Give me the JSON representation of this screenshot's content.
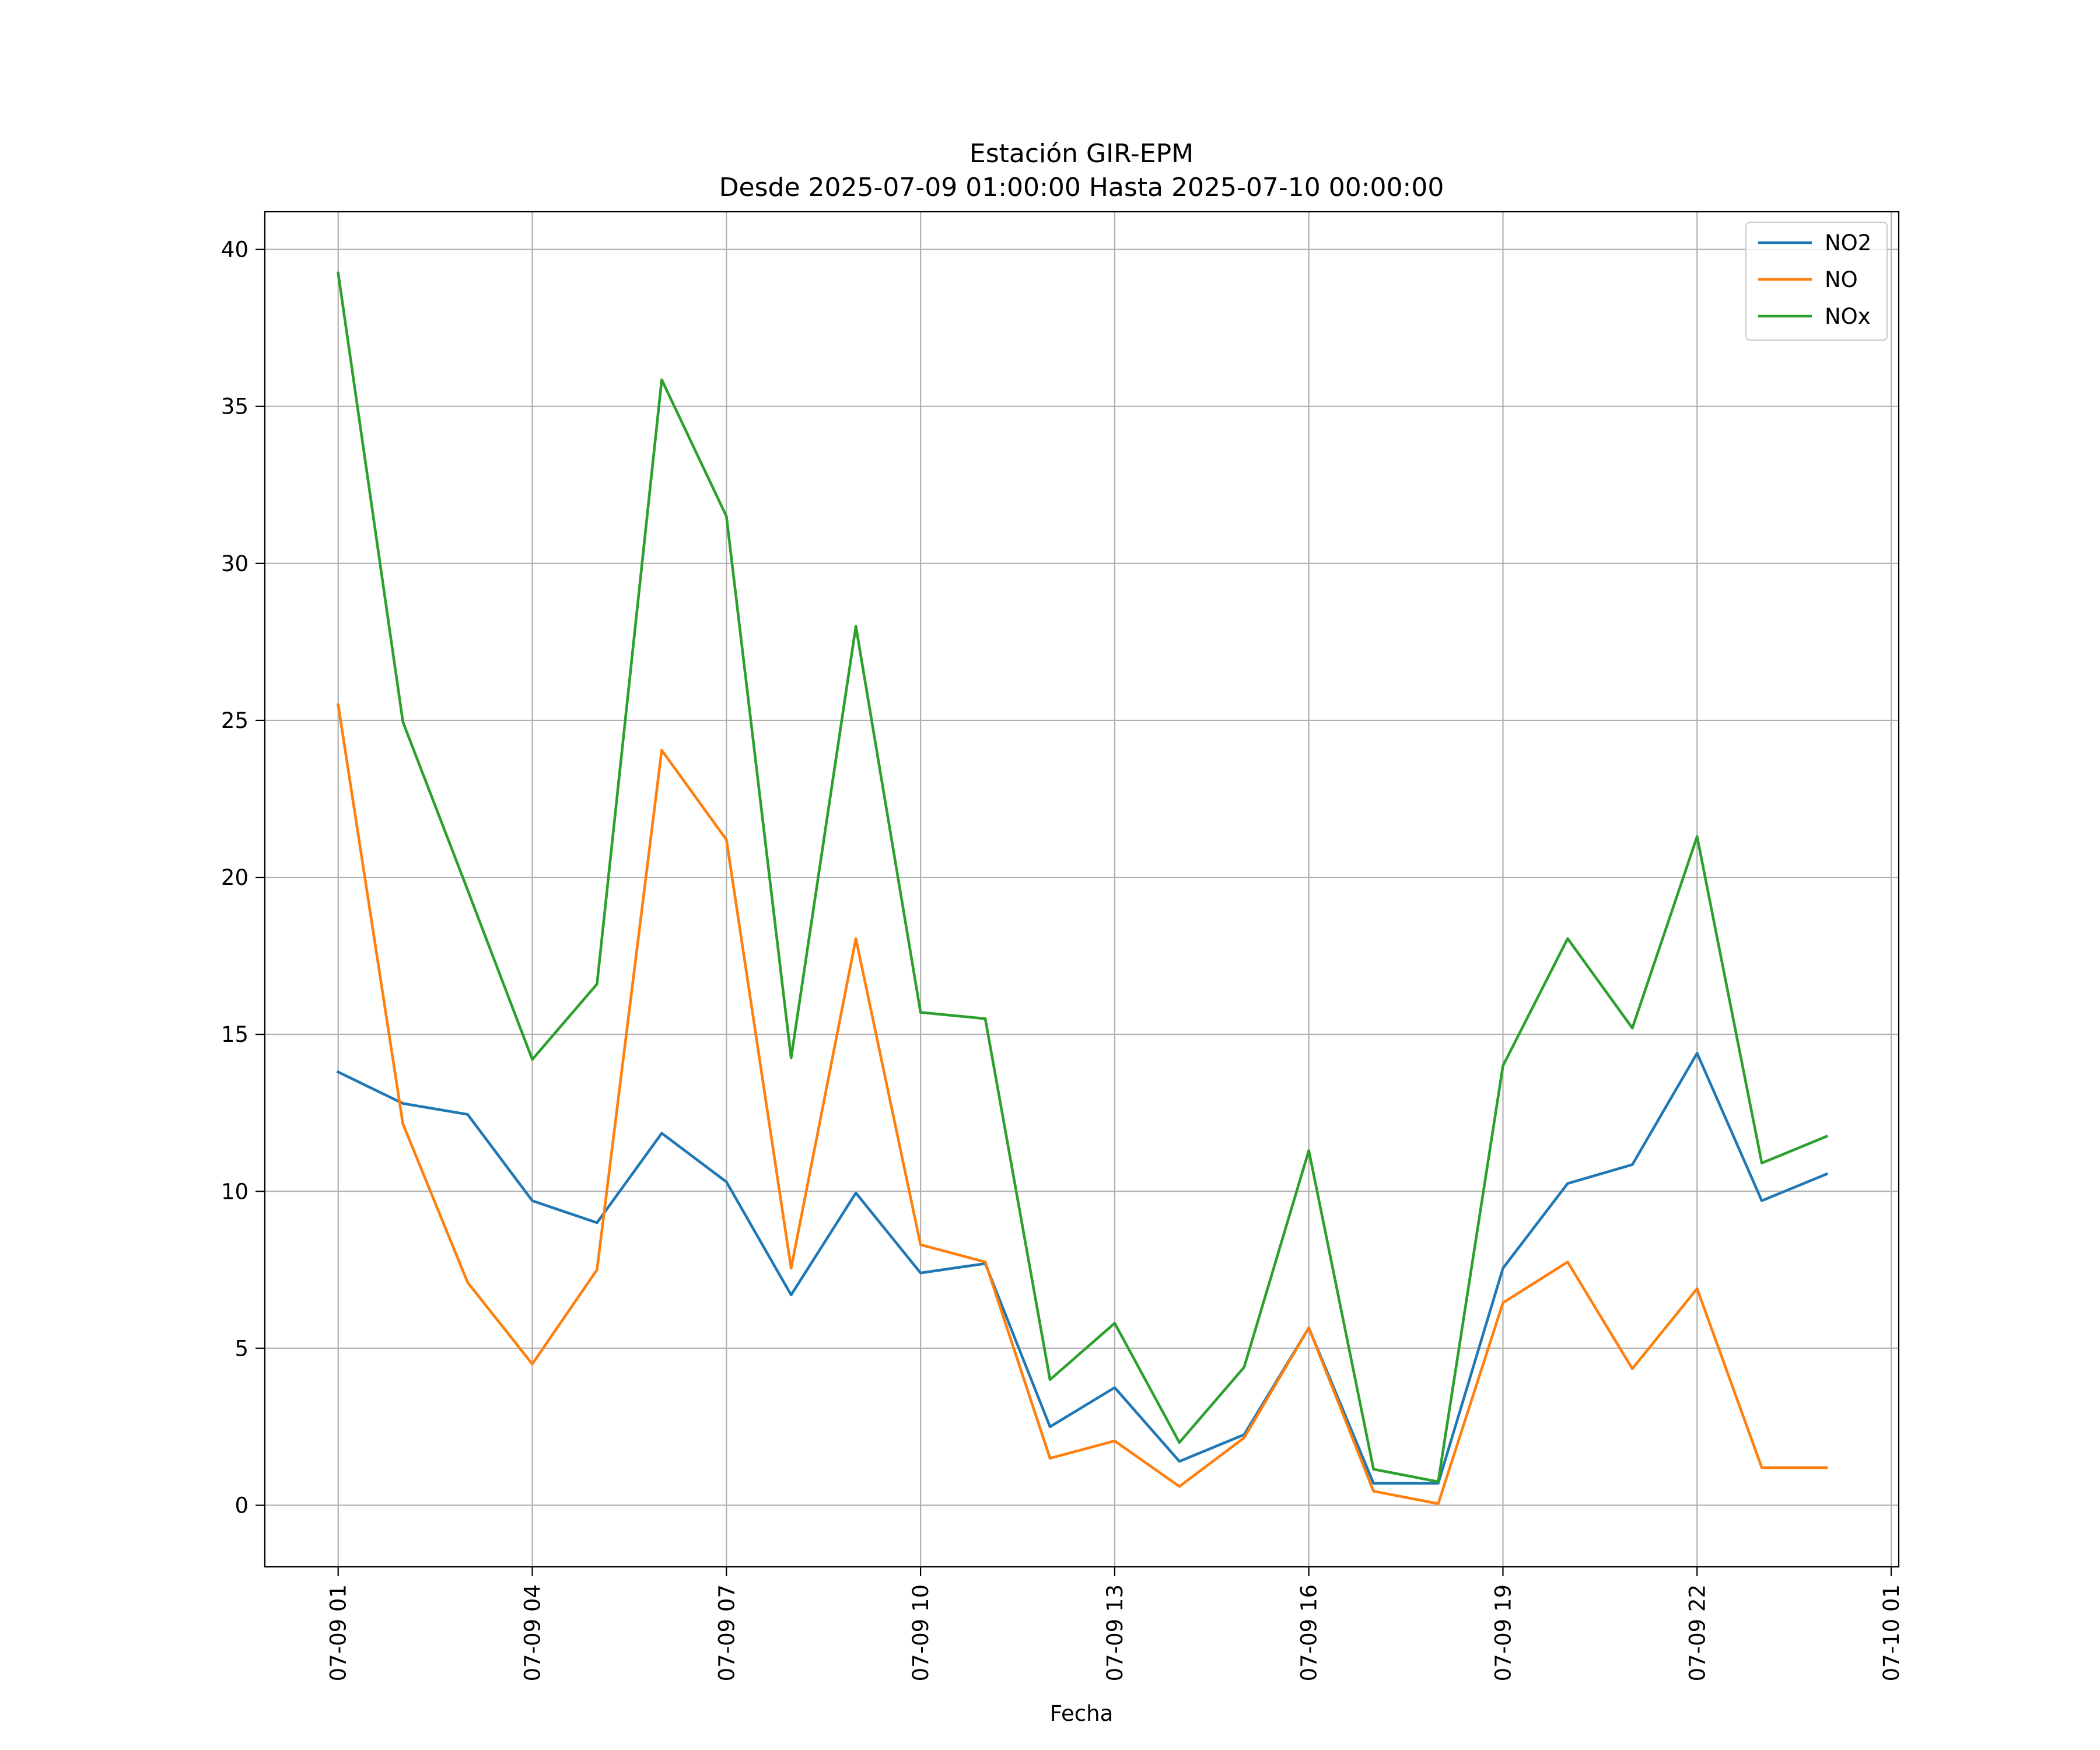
{
  "chart_data": {
    "type": "line",
    "title": "Estación GIR-EPM",
    "subtitle": "Desde 2025-07-09 01:00:00 Hasta 2025-07-10 00:00:00",
    "xlabel": "Fecha",
    "ylabel": "",
    "x": [
      "2025-07-09 01:00",
      "2025-07-09 02:00",
      "2025-07-09 03:00",
      "2025-07-09 04:00",
      "2025-07-09 05:00",
      "2025-07-09 06:00",
      "2025-07-09 07:00",
      "2025-07-09 08:00",
      "2025-07-09 09:00",
      "2025-07-09 10:00",
      "2025-07-09 11:00",
      "2025-07-09 12:00",
      "2025-07-09 13:00",
      "2025-07-09 14:00",
      "2025-07-09 15:00",
      "2025-07-09 16:00",
      "2025-07-09 17:00",
      "2025-07-09 18:00",
      "2025-07-09 19:00",
      "2025-07-09 20:00",
      "2025-07-09 21:00",
      "2025-07-09 22:00",
      "2025-07-09 23:00",
      "2025-07-10 00:00"
    ],
    "x_ticks": [
      {
        "x": "2025-07-09 01:00",
        "label": "07-09 01"
      },
      {
        "x": "2025-07-09 04:00",
        "label": "07-09 04"
      },
      {
        "x": "2025-07-09 07:00",
        "label": "07-09 07"
      },
      {
        "x": "2025-07-09 10:00",
        "label": "07-09 10"
      },
      {
        "x": "2025-07-09 13:00",
        "label": "07-09 13"
      },
      {
        "x": "2025-07-09 16:00",
        "label": "07-09 16"
      },
      {
        "x": "2025-07-09 19:00",
        "label": "07-09 19"
      },
      {
        "x": "2025-07-09 22:00",
        "label": "07-09 22"
      },
      {
        "x": "2025-07-10 01:00",
        "label": "07-10 01"
      }
    ],
    "xlim": [
      "2025-07-08 23:52",
      "2025-07-10 01:07"
    ],
    "y_ticks": [
      0,
      5,
      10,
      15,
      20,
      25,
      30,
      35,
      40
    ],
    "ylim": [
      -1.96,
      41.2
    ],
    "grid": true,
    "legend_position": "top-right",
    "series": [
      {
        "name": "NO2",
        "color": "#1f77b4",
        "values": [
          13.8,
          12.8,
          12.45,
          9.7,
          9.0,
          11.85,
          10.3,
          6.7,
          9.95,
          7.4,
          7.7,
          2.5,
          3.75,
          1.4,
          2.25,
          5.65,
          0.7,
          0.7,
          7.55,
          10.25,
          10.85,
          14.4,
          9.7,
          10.55
        ]
      },
      {
        "name": "NO",
        "color": "#ff7f0e",
        "values": [
          25.5,
          12.15,
          7.1,
          4.5,
          7.5,
          24.05,
          21.2,
          7.55,
          18.05,
          8.3,
          7.75,
          1.5,
          2.05,
          0.6,
          2.15,
          5.65,
          0.45,
          0.05,
          6.45,
          7.75,
          4.35,
          6.9,
          1.2,
          1.2
        ]
      },
      {
        "name": "NOx",
        "color": "#2ca02c",
        "values": [
          39.25,
          24.95,
          19.6,
          14.2,
          16.6,
          35.85,
          31.5,
          14.25,
          28.0,
          15.7,
          15.5,
          4.0,
          5.8,
          2.0,
          4.4,
          11.3,
          1.15,
          0.75,
          14.0,
          18.05,
          15.2,
          21.3,
          10.9,
          11.75
        ]
      }
    ]
  }
}
